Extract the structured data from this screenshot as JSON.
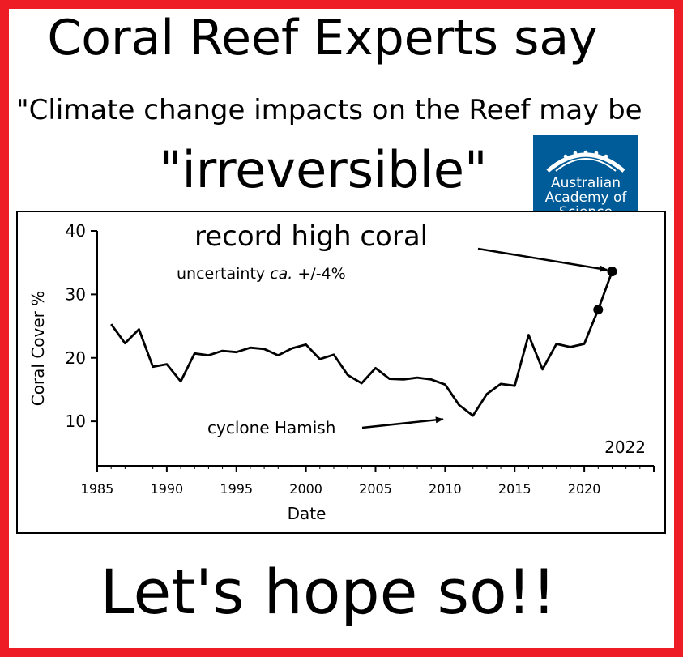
{
  "headline": "Coral Reef Experts say",
  "quote_line1": "\"Climate change impacts on the Reef may be",
  "quote_line2": "\"irreversible\"",
  "logo": {
    "lines": [
      "Australian",
      "Academy of",
      "Science"
    ],
    "color": "#005c98"
  },
  "bottom_text": "Let's hope so!!",
  "frame_color": "#ee1c24",
  "chart_data": {
    "type": "line",
    "title": "",
    "xlabel": "Date",
    "ylabel": "Coral Cover %",
    "xlim": [
      1985,
      2025
    ],
    "ylim": [
      3,
      40
    ],
    "xticks": [
      1985,
      1990,
      1995,
      2000,
      2005,
      2010,
      2015,
      2020
    ],
    "yticks": [
      10,
      20,
      30,
      40
    ],
    "grid": false,
    "x": [
      1986,
      1987,
      1988,
      1989,
      1990,
      1991,
      1992,
      1993,
      1994,
      1995,
      1996,
      1997,
      1998,
      1999,
      2000,
      2001,
      2002,
      2003,
      2004,
      2005,
      2006,
      2007,
      2008,
      2009,
      2010,
      2011,
      2012,
      2013,
      2014,
      2015,
      2016,
      2017,
      2018,
      2019,
      2020,
      2021,
      2022
    ],
    "values": [
      25.3,
      22.3,
      24.5,
      18.6,
      19.0,
      16.3,
      20.7,
      20.4,
      21.1,
      20.9,
      21.6,
      21.4,
      20.4,
      21.5,
      22.1,
      19.8,
      20.5,
      17.3,
      16.0,
      18.4,
      16.7,
      16.6,
      16.9,
      16.6,
      15.8,
      12.6,
      10.9,
      14.3,
      15.9,
      15.6,
      23.6,
      18.2,
      22.2,
      21.7,
      22.2,
      27.6,
      33.6
    ],
    "highlighted_points": [
      {
        "x": 2021,
        "y": 27.6
      },
      {
        "x": 2022,
        "y": 33.6
      }
    ],
    "annotations": [
      {
        "text": "record high coral",
        "arrow_to": {
          "x": 2022,
          "y": 33.6
        }
      },
      {
        "text": "uncertainty ca. +/-4%"
      },
      {
        "text": "cyclone Hamish",
        "arrow_to": {
          "x": 2010.9,
          "y": 10.6
        }
      },
      {
        "text": "2022"
      }
    ]
  }
}
